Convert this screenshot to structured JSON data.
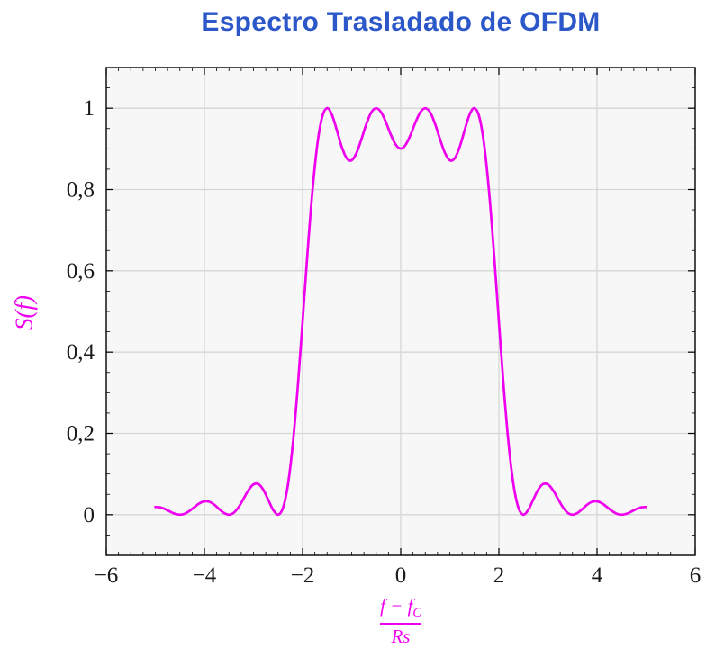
{
  "chart_data": {
    "type": "line",
    "title": "Espectro Trasladado de OFDM",
    "xlabel": "(f − f_C) / Rs",
    "ylabel": "S(f)",
    "grid": true,
    "legend": "none",
    "x_axis": {
      "min": -6,
      "max": 6,
      "tick_values": [
        -6,
        -4,
        -2,
        0,
        2,
        4,
        6
      ],
      "tick_labels": [
        "−6",
        "−4",
        "−2",
        "0",
        "2",
        "4",
        "6"
      ],
      "minor_tick_step": 0.25,
      "grid_values": [
        -4,
        -2,
        0,
        2,
        4
      ]
    },
    "y_axis": {
      "min": -0.1,
      "max": 1.1,
      "tick_values": [
        0,
        0.2,
        0.4,
        0.6,
        0.8,
        1
      ],
      "tick_labels": [
        "0",
        "0,2",
        "0,4",
        "0,6",
        "0,8",
        "1"
      ],
      "minor_tick_step": 0.05,
      "grid_values": [
        0,
        0.2,
        0.4,
        0.6,
        0.8,
        1
      ]
    },
    "series": [
      {
        "name": "S(f)",
        "color": "#EE00EE",
        "x": [
          -5,
          -4.9,
          -4.8,
          -4.7,
          -4.6,
          -4.5,
          -4.4,
          -4.3,
          -4.2,
          -4.1,
          -4,
          -3.9,
          -3.8,
          -3.7,
          -3.6,
          -3.5,
          -3.4,
          -3.3,
          -3.2,
          -3.1,
          -3,
          -2.9,
          -2.8,
          -2.7,
          -2.6,
          -2.5,
          -2.4,
          -2.3,
          -2.2,
          -2.1,
          -2,
          -1.9,
          -1.8,
          -1.7,
          -1.6,
          -1.5,
          -1.4,
          -1.3,
          -1.2,
          -1.1,
          -1,
          -0.9,
          -0.8,
          -0.7,
          -0.6,
          -0.5,
          -0.4,
          -0.3,
          -0.2,
          -0.1,
          0,
          0.1,
          0.2,
          0.3,
          0.4,
          0.5,
          0.6,
          0.7,
          0.8,
          0.9,
          1,
          1.1,
          1.2,
          1.3,
          1.4,
          1.5,
          1.6,
          1.7,
          1.8,
          1.9,
          2,
          2.1,
          2.2,
          2.3,
          2.4,
          2.5,
          2.6,
          2.7,
          2.8,
          2.9,
          3,
          3.1,
          3.2,
          3.3,
          3.4,
          3.5,
          3.6,
          3.7,
          3.8,
          3.9,
          4,
          4.1,
          4.2,
          4.3,
          4.4,
          4.5,
          4.6,
          4.7,
          4.8,
          4.9,
          5
        ],
        "y": [
          0.019,
          0.018,
          0.0137,
          0.0076,
          0.0022,
          0,
          0.0025,
          0.0095,
          0.019,
          0.0279,
          0.0328,
          0.0317,
          0.0246,
          0.0139,
          0.0042,
          0,
          0.0049,
          0.0192,
          0.0399,
          0.0608,
          0.0745,
          0.0753,
          0.0614,
          0.0369,
          0.0118,
          0,
          0.0164,
          0.0724,
          0.1722,
          0.311,
          0.4748,
          0.6434,
          0.7947,
          0.9101,
          0.9788,
          1,
          0.9834,
          0.9451,
          0.9042,
          0.8767,
          0.8718,
          0.89,
          0.9239,
          0.9614,
          0.9897,
          1,
          0.9902,
          0.965,
          0.9343,
          0.9099,
          0.9006,
          0.9099,
          0.9343,
          0.965,
          0.9902,
          1,
          0.9897,
          0.9614,
          0.9239,
          0.89,
          0.8718,
          0.8767,
          0.9042,
          0.9451,
          0.9834,
          1,
          0.9788,
          0.9101,
          0.7947,
          0.6434,
          0.4748,
          0.311,
          0.1722,
          0.0724,
          0.0164,
          0,
          0.0118,
          0.0369,
          0.0614,
          0.0753,
          0.0745,
          0.0608,
          0.0399,
          0.0192,
          0.0049,
          0,
          0.0042,
          0.0139,
          0.0246,
          0.0317,
          0.0328,
          0.0279,
          0.019,
          0.0095,
          0.0025,
          0,
          0.0022,
          0.0076,
          0.0137,
          0.018,
          0.019
        ]
      }
    ]
  },
  "labels": {
    "y_axis": "S(f)",
    "x_numerator_main": "f − f",
    "x_numerator_sub": "C",
    "x_denominator": "Rs"
  },
  "colors": {
    "title": "#2B57C8",
    "curve": "#EE00EE",
    "grid": "#D6D6D6",
    "axis": "#000000",
    "plot_background": "#F7F7F7",
    "tick_label": "#1A1A1A"
  }
}
